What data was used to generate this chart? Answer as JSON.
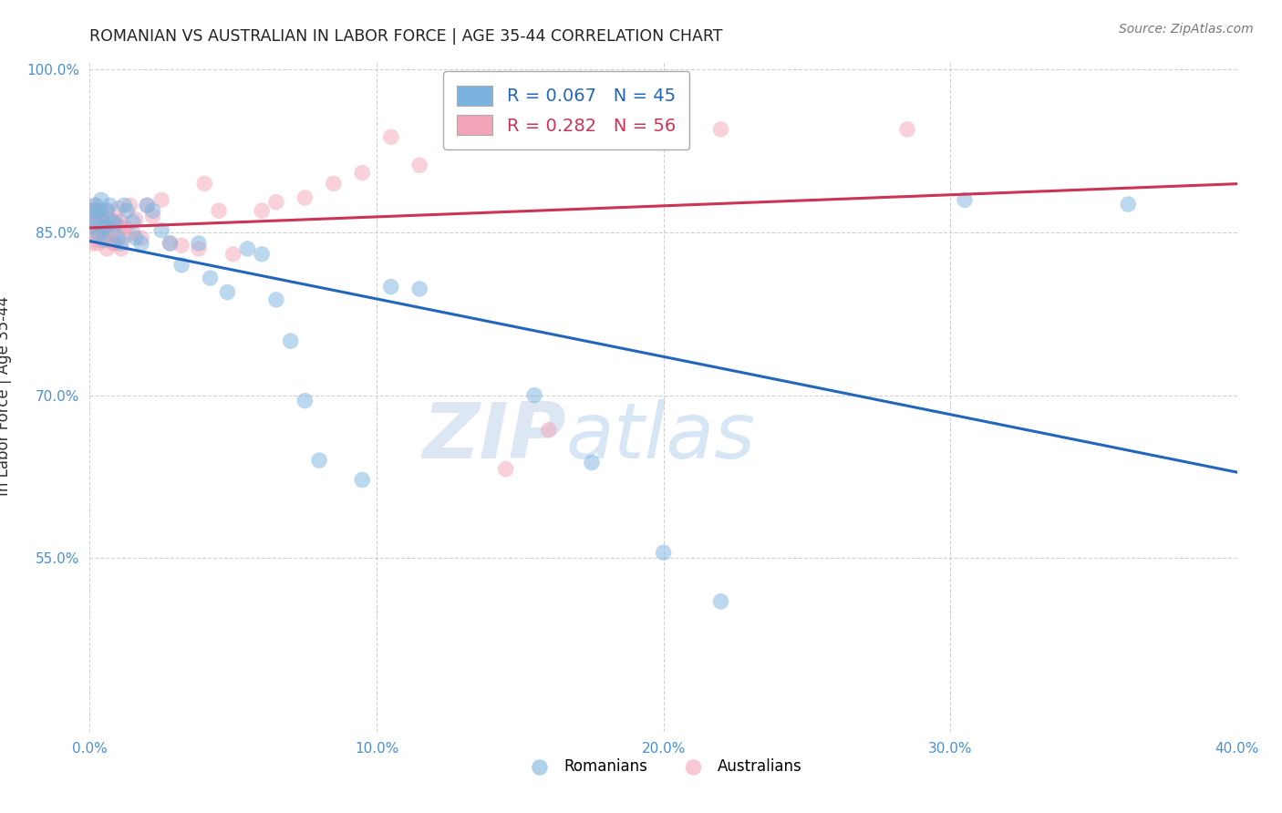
{
  "title": "ROMANIAN VS AUSTRALIAN IN LABOR FORCE | AGE 35-44 CORRELATION CHART",
  "source": "Source: ZipAtlas.com",
  "ylabel": "In Labor Force | Age 35-44",
  "xmin": 0.0,
  "xmax": 0.4,
  "ymin": 0.39,
  "ymax": 1.008,
  "xticks": [
    0.0,
    0.1,
    0.2,
    0.3,
    0.4
  ],
  "xtick_labels": [
    "0.0%",
    "10.0%",
    "20.0%",
    "30.0%",
    "40.0%"
  ],
  "yticks": [
    0.55,
    0.7,
    0.85,
    1.0
  ],
  "ytick_labels": [
    "55.0%",
    "70.0%",
    "85.0%",
    "100.0%"
  ],
  "R_blue": 0.067,
  "N_blue": 45,
  "R_pink": 0.282,
  "N_pink": 56,
  "blue_color": "#7ab3de",
  "pink_color": "#f4a4b8",
  "blue_line_color": "#2266bb",
  "pink_line_color": "#cc3355",
  "bg_color": "#ffffff",
  "grid_color": "#cccccc",
  "watermark_zip": "ZIP",
  "watermark_atlas": "atlas",
  "blue_x": [
    0.001,
    0.001,
    0.002,
    0.002,
    0.003,
    0.003,
    0.004,
    0.004,
    0.005,
    0.005,
    0.006,
    0.006,
    0.007,
    0.008,
    0.009,
    0.01,
    0.011,
    0.012,
    0.013,
    0.015,
    0.016,
    0.018,
    0.02,
    0.022,
    0.025,
    0.028,
    0.032,
    0.038,
    0.042,
    0.048,
    0.055,
    0.06,
    0.065,
    0.07,
    0.075,
    0.08,
    0.095,
    0.105,
    0.115,
    0.155,
    0.175,
    0.2,
    0.22,
    0.305,
    0.362
  ],
  "blue_y": [
    0.87,
    0.855,
    0.862,
    0.875,
    0.848,
    0.87,
    0.88,
    0.865,
    0.843,
    0.855,
    0.87,
    0.855,
    0.875,
    0.86,
    0.858,
    0.845,
    0.84,
    0.875,
    0.87,
    0.86,
    0.845,
    0.84,
    0.875,
    0.87,
    0.852,
    0.84,
    0.82,
    0.84,
    0.808,
    0.795,
    0.835,
    0.83,
    0.788,
    0.75,
    0.695,
    0.64,
    0.622,
    0.8,
    0.798,
    0.7,
    0.638,
    0.555,
    0.51,
    0.88,
    0.876
  ],
  "pink_x": [
    0.001,
    0.001,
    0.001,
    0.001,
    0.002,
    0.002,
    0.002,
    0.003,
    0.003,
    0.003,
    0.003,
    0.004,
    0.004,
    0.004,
    0.005,
    0.005,
    0.006,
    0.006,
    0.006,
    0.007,
    0.007,
    0.008,
    0.008,
    0.009,
    0.009,
    0.01,
    0.01,
    0.011,
    0.011,
    0.012,
    0.013,
    0.014,
    0.015,
    0.016,
    0.018,
    0.02,
    0.022,
    0.025,
    0.028,
    0.032,
    0.038,
    0.04,
    0.045,
    0.05,
    0.06,
    0.065,
    0.075,
    0.085,
    0.095,
    0.105,
    0.115,
    0.145,
    0.16,
    0.175,
    0.22,
    0.285
  ],
  "pink_y": [
    0.87,
    0.862,
    0.855,
    0.84,
    0.875,
    0.87,
    0.848,
    0.862,
    0.855,
    0.843,
    0.84,
    0.87,
    0.848,
    0.86,
    0.856,
    0.85,
    0.87,
    0.857,
    0.835,
    0.862,
    0.843,
    0.848,
    0.84,
    0.86,
    0.84,
    0.872,
    0.855,
    0.86,
    0.835,
    0.855,
    0.848,
    0.875,
    0.85,
    0.862,
    0.845,
    0.875,
    0.865,
    0.88,
    0.84,
    0.838,
    0.835,
    0.895,
    0.87,
    0.83,
    0.87,
    0.878,
    0.882,
    0.895,
    0.905,
    0.938,
    0.912,
    0.632,
    0.668,
    0.94,
    0.945,
    0.945
  ]
}
